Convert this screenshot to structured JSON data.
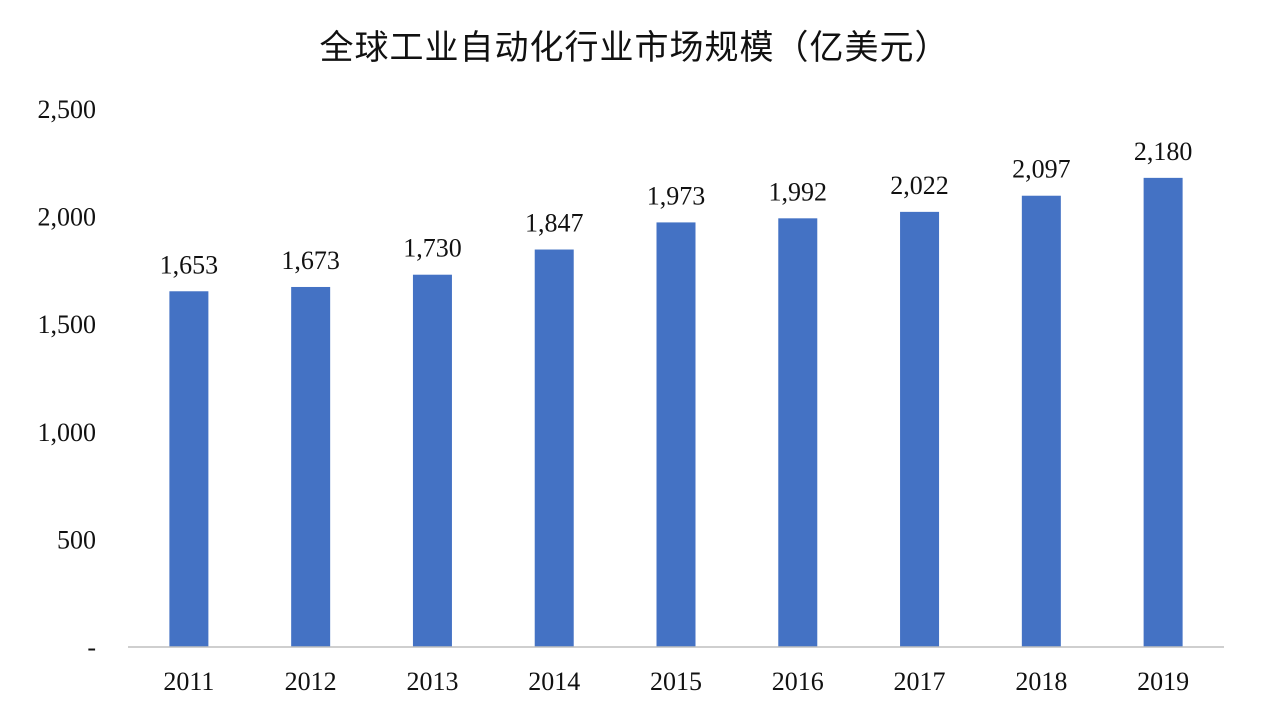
{
  "chart_data": {
    "type": "bar",
    "title": "全球工业自动化行业市场规模（亿美元）",
    "xlabel": "",
    "ylabel": "",
    "categories": [
      "2011",
      "2012",
      "2013",
      "2014",
      "2015",
      "2016",
      "2017",
      "2018",
      "2019"
    ],
    "values": [
      1653,
      1673,
      1730,
      1847,
      1973,
      1992,
      2022,
      2097,
      2180
    ],
    "data_labels": [
      "1,653",
      "1,673",
      "1,730",
      "1,847",
      "1,973",
      "1,992",
      "2,022",
      "2,097",
      "2,180"
    ],
    "ylim": [
      0,
      2500
    ],
    "yticks": [
      0,
      500,
      1000,
      1500,
      2000,
      2500
    ],
    "ytick_labels": [
      "-",
      "500",
      "1,000",
      "1,500",
      "2,000",
      "2,500"
    ],
    "grid": false,
    "legend": "none",
    "bar_color": "#4472C4",
    "axis_color": "#BFBFBF"
  }
}
